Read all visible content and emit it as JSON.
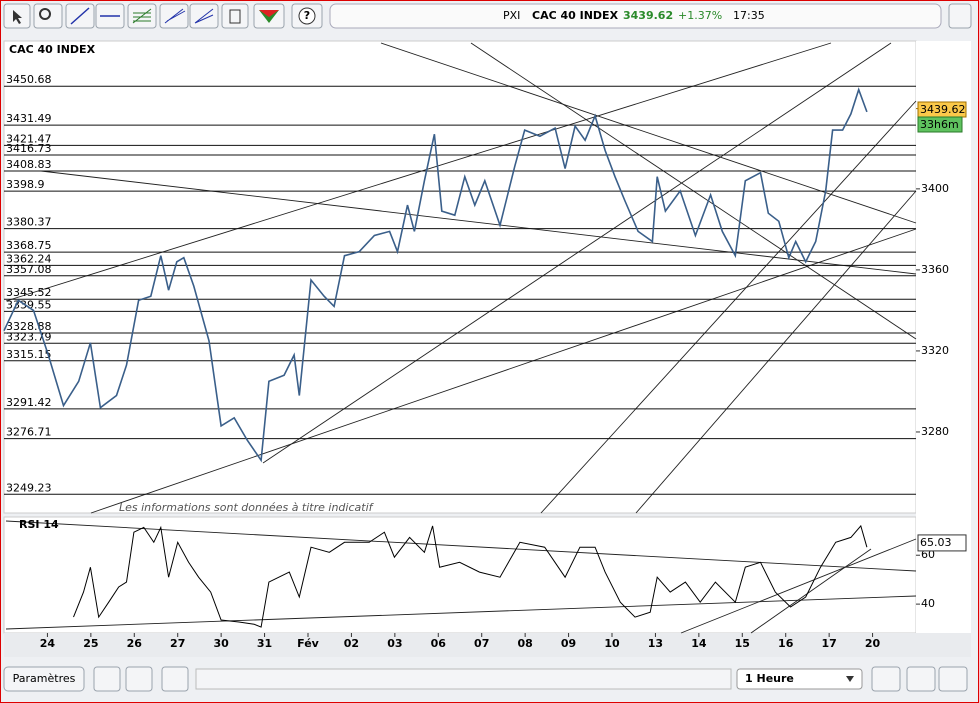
{
  "header": {
    "code": "PXI",
    "name": "CAC 40 INDEX",
    "last": "3439.62",
    "change": "+1.37%",
    "time": "17:35"
  },
  "remaining": "33h6m",
  "disclaimer": "Les informations sont données à titre indicatif",
  "footer": {
    "settings": "Paramètres",
    "interval": "1 Heure"
  },
  "chart_data": [
    {
      "type": "line",
      "title": "CAC 40 INDEX",
      "color": "#3a5f8a",
      "ylim": [
        3240,
        3472
      ],
      "xlim": [
        -1,
        20
      ],
      "yticks": [
        3280,
        3320,
        3360,
        3400
      ],
      "xticks": [
        {
          "value": 0,
          "label": "24"
        },
        {
          "value": 1,
          "label": "25"
        },
        {
          "value": 2,
          "label": "26"
        },
        {
          "value": 3,
          "label": "27"
        },
        {
          "value": 4,
          "label": "30"
        },
        {
          "value": 5,
          "label": "31"
        },
        {
          "value": 6,
          "label": "Fév"
        },
        {
          "value": 7,
          "label": "02"
        },
        {
          "value": 8,
          "label": "03"
        },
        {
          "value": 9,
          "label": "06"
        },
        {
          "value": 10,
          "label": "07"
        },
        {
          "value": 11,
          "label": "08"
        },
        {
          "value": 12,
          "label": "09"
        },
        {
          "value": 13,
          "label": "10"
        },
        {
          "value": 14,
          "label": "13"
        },
        {
          "value": 15,
          "label": "14"
        },
        {
          "value": 16,
          "label": "15"
        },
        {
          "value": 17,
          "label": "16"
        },
        {
          "value": 18,
          "label": "17"
        },
        {
          "value": 19,
          "label": "20"
        }
      ],
      "levels": [
        3450.68,
        3431.49,
        3421.47,
        3416.73,
        3408.83,
        3398.9,
        3380.37,
        3368.75,
        3362.24,
        3357.08,
        3345.52,
        3339.55,
        3328.88,
        3323.79,
        3315.15,
        3291.42,
        3276.71,
        3249.23
      ],
      "last_value": 3439.62,
      "x": [
        -1.0,
        -0.67,
        -0.32,
        0.02,
        0.37,
        0.72,
        0.99,
        1.22,
        1.59,
        1.82,
        2.1,
        2.38,
        2.61,
        2.79,
        2.98,
        3.14,
        3.37,
        3.72,
        4.0,
        4.3,
        4.6,
        4.92,
        5.1,
        5.45,
        5.68,
        5.8,
        6.07,
        6.37,
        6.6,
        6.84,
        7.18,
        7.53,
        7.88,
        8.06,
        8.29,
        8.45,
        8.68,
        8.91,
        9.08,
        9.38,
        9.61,
        9.84,
        10.07,
        10.42,
        10.76,
        10.99,
        11.34,
        11.69,
        11.92,
        12.15,
        12.38,
        12.61,
        12.84,
        13.07,
        13.3,
        13.6,
        13.93,
        14.04,
        14.23,
        14.57,
        14.92,
        15.27,
        15.54,
        15.84,
        16.07,
        16.42,
        16.6,
        16.84,
        17.07,
        17.23,
        17.46,
        17.69,
        17.92,
        18.08,
        18.31,
        18.5,
        18.68,
        18.87
      ],
      "values": [
        3330,
        3345,
        3340,
        3318,
        3293,
        3305,
        3324,
        3292,
        3298,
        3313,
        3345,
        3347,
        3367,
        3350,
        3364,
        3366,
        3352,
        3325,
        3283,
        3287,
        3276,
        3266,
        3305,
        3308,
        3318,
        3298,
        3355,
        3347,
        3342,
        3367,
        3369,
        3377,
        3379,
        3369,
        3392,
        3379,
        3404,
        3427,
        3389,
        3387,
        3406,
        3392,
        3404,
        3382,
        3411,
        3429,
        3426,
        3430,
        3410,
        3431,
        3424,
        3436,
        3419,
        3406,
        3394,
        3379,
        3374,
        3406,
        3389,
        3399,
        3377,
        3397,
        3379,
        3367,
        3404,
        3408,
        3388,
        3384,
        3366,
        3374,
        3364,
        3374,
        3399,
        3429,
        3429,
        3437,
        3449,
        3438
      ]
    },
    {
      "type": "line",
      "title": "RSI 14",
      "color": "#000000",
      "ylim": [
        29,
        74
      ],
      "xlim": [
        -1,
        20
      ],
      "yticks": [
        40,
        60
      ],
      "last_value": 65.03,
      "x": [
        0.6,
        0.83,
        0.99,
        1.18,
        1.41,
        1.64,
        1.82,
        1.99,
        2.22,
        2.45,
        2.61,
        2.79,
        3.0,
        3.25,
        3.48,
        3.76,
        4.0,
        4.41,
        4.76,
        4.92,
        5.1,
        5.57,
        5.8,
        6.07,
        6.49,
        6.84,
        7.41,
        7.76,
        7.99,
        8.34,
        8.68,
        8.87,
        9.03,
        9.49,
        9.95,
        10.42,
        10.88,
        11.45,
        11.92,
        12.26,
        12.61,
        12.84,
        13.19,
        13.53,
        13.88,
        14.04,
        14.34,
        14.69,
        15.03,
        15.38,
        15.84,
        16.07,
        16.42,
        16.76,
        17.11,
        17.46,
        17.8,
        18.15,
        18.5,
        18.73,
        18.87
      ],
      "values": [
        34.7,
        44.9,
        55.1,
        34.7,
        40.8,
        47,
        49,
        69.4,
        71.4,
        65.3,
        71.4,
        51,
        65.3,
        57.1,
        51,
        44.9,
        33.5,
        32.7,
        31.8,
        30.6,
        49,
        53.1,
        42.9,
        63.3,
        61.2,
        65.3,
        65.3,
        69.4,
        59.2,
        67.3,
        61.2,
        72,
        55.1,
        57.1,
        53.1,
        51,
        65.3,
        63.3,
        51,
        63.3,
        63.3,
        53.1,
        40.8,
        34.7,
        36.7,
        51,
        44.9,
        49,
        40.8,
        49,
        40.8,
        55.1,
        57.1,
        44.9,
        38.8,
        42.9,
        55.1,
        65.3,
        67.3,
        72,
        63.3
      ]
    }
  ]
}
